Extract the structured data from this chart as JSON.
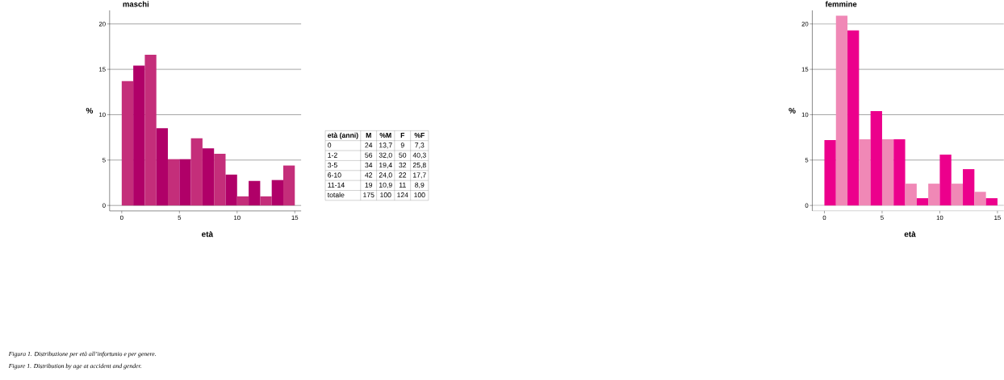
{
  "chart_data": [
    {
      "type": "histogram",
      "title": "maschi",
      "xlabel": "età",
      "ylabel": "%",
      "bins": [
        0,
        1,
        2,
        3,
        4,
        5,
        6,
        7,
        8,
        9,
        10,
        11,
        12,
        13,
        14,
        15
      ],
      "values": [
        13.7,
        15.4,
        16.6,
        8.5,
        5.1,
        5.1,
        7.4,
        6.3,
        5.7,
        3.4,
        1.0,
        2.7,
        1.0,
        2.8,
        4.4
      ],
      "colors": [
        "#c42e7a",
        "#b00068",
        "#c42e7a",
        "#b00068",
        "#c42e7a",
        "#b00068",
        "#c42e7a",
        "#b00068",
        "#c42e7a",
        "#b00068",
        "#c42e7a",
        "#b00068",
        "#c42e7a",
        "#b00068",
        "#c42e7a"
      ],
      "xlim": [
        -1.05,
        15.55
      ],
      "ylim": [
        -0.6,
        21.5
      ],
      "xticks": [
        0,
        5,
        10,
        15
      ],
      "yticks": [
        0,
        5,
        10,
        15,
        20
      ],
      "grid": "y",
      "annotations": [
        "Figura 1. Distribuzione per età all’infortunio e per genere.",
        "Figure 1. Distribution by age at accident and gender."
      ]
    },
    {
      "type": "histogram",
      "title": "femmine",
      "xlabel": "età",
      "ylabel": "%",
      "bins": [
        0,
        1,
        2,
        3,
        4,
        5,
        6,
        7,
        8,
        9,
        10,
        11,
        12,
        13,
        14,
        15
      ],
      "values": [
        7.2,
        20.9,
        19.3,
        7.3,
        10.4,
        7.3,
        7.3,
        2.4,
        0.8,
        2.4,
        5.6,
        2.4,
        4.0,
        1.5,
        0.8
      ],
      "colors": [
        "#ec008c",
        "#f088b6",
        "#ec008c",
        "#f088b6",
        "#ec008c",
        "#f088b6",
        "#ec008c",
        "#f088b6",
        "#ec008c",
        "#f088b6",
        "#ec008c",
        "#f088b6",
        "#ec008c",
        "#f088b6",
        "#ec008c"
      ],
      "xlim": [
        -1.05,
        15.55
      ],
      "ylim": [
        -0.6,
        21.5
      ],
      "xticks": [
        0,
        5,
        10,
        15
      ],
      "yticks": [
        0,
        5,
        10,
        15,
        20
      ],
      "grid": "y"
    },
    {
      "type": "other",
      "annotations": [
        "età (anni)",
        "M",
        "%M",
        "F",
        "%F",
        "0",
        "24",
        "13,7",
        "9",
        "7,3",
        "1-2",
        "56",
        "32,0",
        "50",
        "40,3",
        "3-5",
        "34",
        "19,4",
        "32",
        "25,8",
        "6-10",
        "42",
        "24,0",
        "22",
        "17,7",
        "11-14",
        "19",
        "10,9",
        "11",
        "8,9",
        "totale",
        "175",
        "100",
        "124",
        "100"
      ]
    }
  ]
}
